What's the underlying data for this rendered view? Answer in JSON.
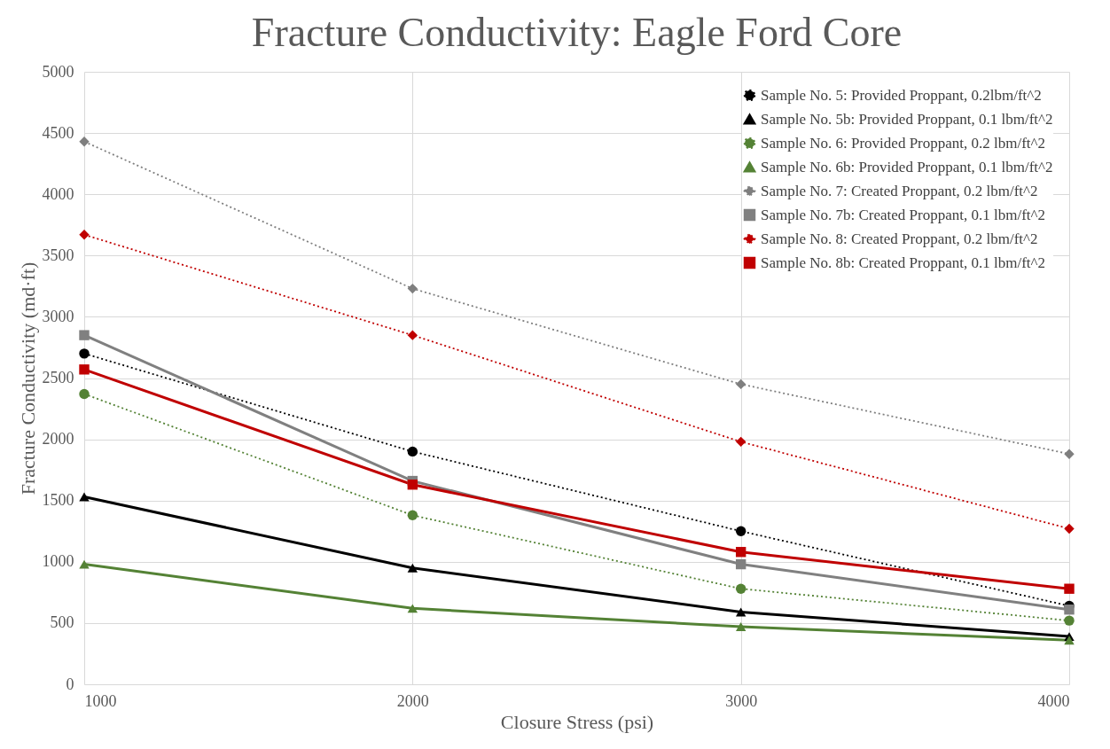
{
  "chart_data": {
    "type": "line",
    "title": "Fracture Conductivity: Eagle Ford Core",
    "xlabel": "Closure Stress (psi)",
    "ylabel": "Fracture Conductivity (md·ft)",
    "x": [
      1000,
      2000,
      3000,
      4000
    ],
    "xlim": [
      1000,
      4000
    ],
    "xticks": [
      1000,
      2000,
      3000,
      4000
    ],
    "ylim": [
      0,
      5000
    ],
    "yticks": [
      0,
      500,
      1000,
      1500,
      2000,
      2500,
      3000,
      3500,
      4000,
      4500,
      5000
    ],
    "grid": true,
    "legend": "top right",
    "series": [
      {
        "name": "Sample No. 5: Provided Proppant, 0.2lbm/ft^2",
        "color": "#000000",
        "marker": "circle",
        "line_style": "dotted",
        "values": [
          2700,
          1900,
          1250,
          640
        ]
      },
      {
        "name": "Sample No. 5b: Provided Proppant, 0.1 lbm/ft^2",
        "color": "#000000",
        "marker": "triangle",
        "line_style": "solid",
        "values": [
          1530,
          950,
          590,
          390
        ]
      },
      {
        "name": "Sample No. 6: Provided Proppant, 0.2 lbm/ft^2",
        "color": "#548235",
        "marker": "circle",
        "line_style": "dotted",
        "values": [
          2370,
          1380,
          780,
          520
        ]
      },
      {
        "name": "Sample No. 6b: Provided Proppant, 0.1 lbm/ft^2",
        "color": "#548235",
        "marker": "triangle",
        "line_style": "solid",
        "values": [
          980,
          620,
          470,
          360
        ]
      },
      {
        "name": "Sample No. 7: Created Proppant, 0.2 lbm/ft^2",
        "color": "#7f7f7f",
        "marker": "diamond",
        "line_style": "dotted",
        "values": [
          4430,
          3230,
          2450,
          1880
        ]
      },
      {
        "name": "Sample No. 7b: Created Proppant, 0.1 lbm/ft^2",
        "color": "#808080",
        "marker": "square",
        "line_style": "solid",
        "values": [
          2850,
          1660,
          980,
          610
        ]
      },
      {
        "name": "Sample No. 8: Created Proppant, 0.2 lbm/ft^2",
        "color": "#c00000",
        "marker": "diamond",
        "line_style": "dotted",
        "values": [
          3670,
          2850,
          1980,
          1270
        ]
      },
      {
        "name": "Sample No. 8b: Created Proppant, 0.1 lbm/ft^2",
        "color": "#c00001",
        "marker": "square",
        "line_style": "solid",
        "values": [
          2570,
          1630,
          1080,
          780
        ]
      }
    ]
  }
}
